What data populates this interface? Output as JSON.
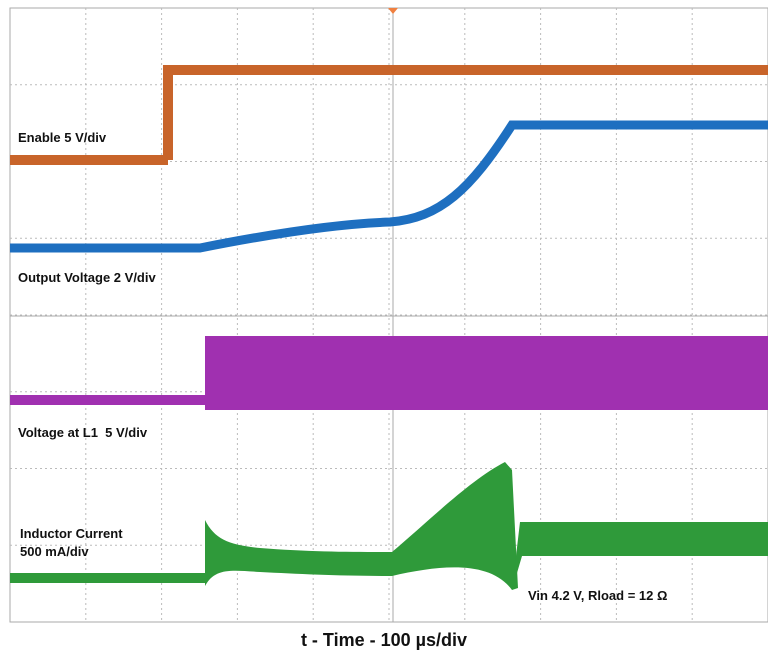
{
  "chart_data": {
    "type": "oscilloscope",
    "annotations": [
      "Enable 5 V/div",
      "Output Voltage 2 V/div",
      "Voltage at L1  5 V/div",
      "Inductor Current",
      "500 mA/div",
      "Vin 4.2 V, Rload = 12 Ω"
    ],
    "xlabel": "t - Time - 100 µs/div"
  }
}
